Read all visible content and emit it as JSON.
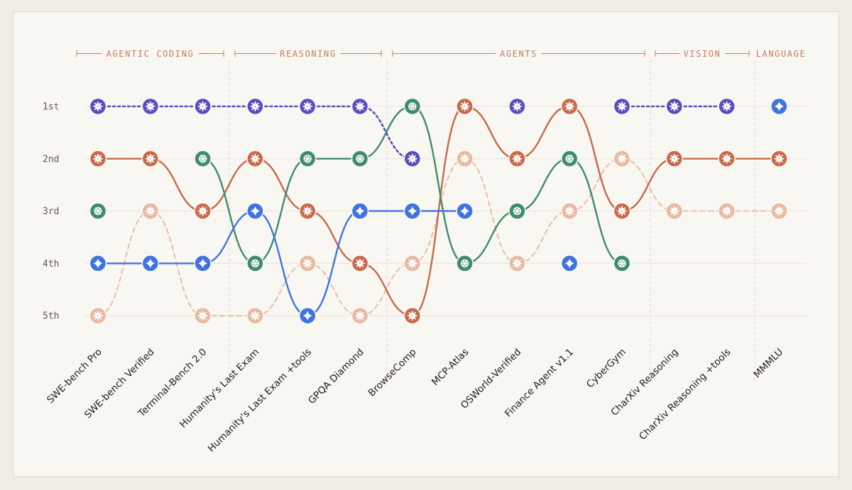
{
  "chart_data": {
    "type": "bump",
    "categories": [
      {
        "label": "AGENTIC CODING",
        "from": 0,
        "to": 2
      },
      {
        "label": "REASONING",
        "from": 3,
        "to": 5
      },
      {
        "label": "AGENTS",
        "from": 6,
        "to": 10
      },
      {
        "label": "VISION",
        "from": 11,
        "to": 12
      },
      {
        "label": "LANGUAGE",
        "from": 13,
        "to": 13
      }
    ],
    "ranks": [
      "1st",
      "2nd",
      "3rd",
      "4th",
      "5th"
    ],
    "benchmarks": [
      "SWE-bench Pro",
      "SWE-bench Verified",
      "Terminal-Bench 2.0",
      "Humanity's Last Exam",
      "Humanity's Last Exam +tools",
      "GPQA Diamond",
      "BrowseComp",
      "MCP-Atlas",
      "OSWorld-Verified",
      "Finance Agent v1.1",
      "CyberGym",
      "CharXiv Reasoning",
      "CharXiv Reasoning +tools",
      "MMMLU"
    ],
    "series": [
      {
        "key": "purple",
        "color": "#5b4bbf",
        "icon": "sparkle-burst-icon",
        "style": "dotted",
        "ranks": [
          1,
          1,
          1,
          1,
          1,
          1,
          2,
          null,
          1,
          null,
          1,
          1,
          1,
          null
        ]
      },
      {
        "key": "orange",
        "color": "#c8694a",
        "icon": "sparkle-burst-icon",
        "style": "solid",
        "ranks": [
          2,
          2,
          3,
          2,
          3,
          4,
          5,
          1,
          2,
          1,
          3,
          2,
          2,
          2
        ]
      },
      {
        "key": "green",
        "color": "#3e8d6a",
        "icon": "openai-knot-icon",
        "style": "solid",
        "ranks": [
          3,
          null,
          2,
          4,
          2,
          2,
          1,
          4,
          3,
          2,
          4,
          null,
          null,
          null
        ]
      },
      {
        "key": "blue",
        "color": "#3f74e0",
        "icon": "four-point-star-icon",
        "style": "solid",
        "ranks": [
          4,
          4,
          4,
          3,
          5,
          3,
          3,
          3,
          null,
          4,
          null,
          null,
          null,
          1
        ]
      },
      {
        "key": "peach",
        "color": "#e8b8a0",
        "icon": "sparkle-burst-icon",
        "style": "dashed",
        "ranks": [
          5,
          3,
          5,
          5,
          4,
          5,
          4,
          2,
          4,
          3,
          2,
          3,
          3,
          3
        ]
      }
    ]
  }
}
